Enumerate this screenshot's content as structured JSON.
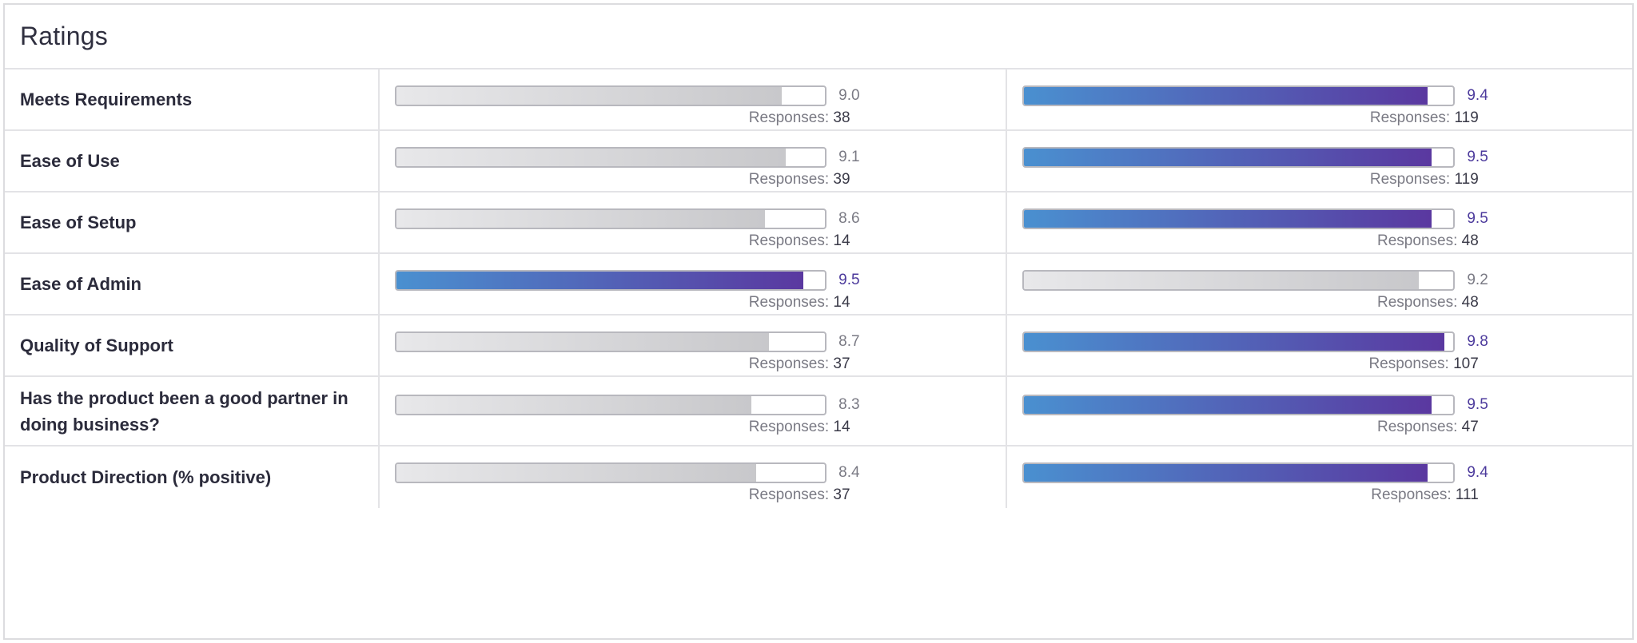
{
  "header": {
    "title": "Ratings"
  },
  "responses_prefix": "Responses:",
  "colors": {
    "winner_gradient": [
      "#4a90d0",
      "#5a38a0"
    ],
    "neutral_gradient": [
      "#e8e8ea",
      "#c8c8cb"
    ],
    "winner_text": "#4c3a9c",
    "neutral_text": "#7a7a84"
  },
  "rows": [
    {
      "label": "Meets Requirements",
      "left": {
        "score": "9.0",
        "responses": "38",
        "fill_fraction": 0.9,
        "style": "gray"
      },
      "right": {
        "score": "9.4",
        "responses": "119",
        "fill_fraction": 0.94,
        "style": "purple"
      }
    },
    {
      "label": "Ease of Use",
      "left": {
        "score": "9.1",
        "responses": "39",
        "fill_fraction": 0.91,
        "style": "gray"
      },
      "right": {
        "score": "9.5",
        "responses": "119",
        "fill_fraction": 0.95,
        "style": "purple"
      }
    },
    {
      "label": "Ease of Setup",
      "left": {
        "score": "8.6",
        "responses": "14",
        "fill_fraction": 0.86,
        "style": "gray"
      },
      "right": {
        "score": "9.5",
        "responses": "48",
        "fill_fraction": 0.95,
        "style": "purple"
      }
    },
    {
      "label": "Ease of Admin",
      "left": {
        "score": "9.5",
        "responses": "14",
        "fill_fraction": 0.95,
        "style": "purple"
      },
      "right": {
        "score": "9.2",
        "responses": "48",
        "fill_fraction": 0.92,
        "style": "gray"
      }
    },
    {
      "label": "Quality of Support",
      "left": {
        "score": "8.7",
        "responses": "37",
        "fill_fraction": 0.87,
        "style": "gray"
      },
      "right": {
        "score": "9.8",
        "responses": "107",
        "fill_fraction": 0.98,
        "style": "purple"
      }
    },
    {
      "label": "Has the product been a good partner in doing business?",
      "left": {
        "score": "8.3",
        "responses": "14",
        "fill_fraction": 0.83,
        "style": "gray"
      },
      "right": {
        "score": "9.5",
        "responses": "47",
        "fill_fraction": 0.95,
        "style": "purple"
      }
    },
    {
      "label": "Product Direction (% positive)",
      "left": {
        "score": "8.4",
        "responses": "37",
        "fill_fraction": 0.84,
        "style": "gray"
      },
      "right": {
        "score": "9.4",
        "responses": "111",
        "fill_fraction": 0.94,
        "style": "purple"
      }
    }
  ]
}
